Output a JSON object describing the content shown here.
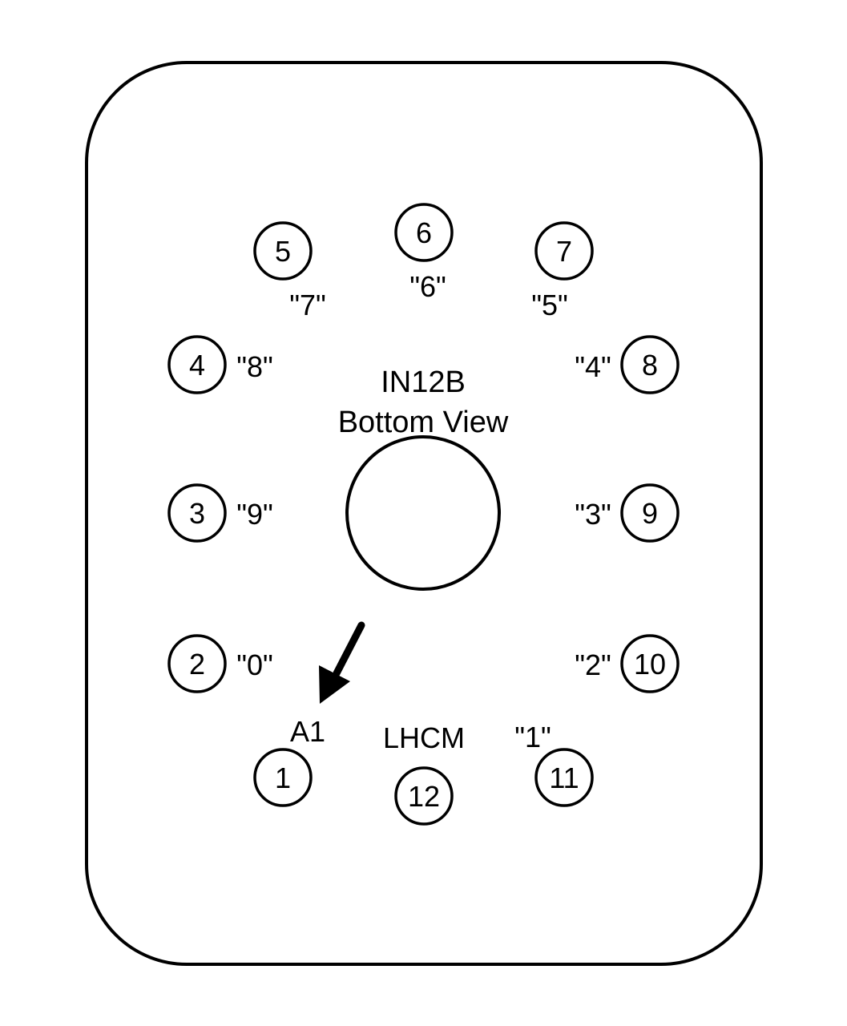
{
  "title": {
    "line1": "IN12B",
    "line2": "Bottom View"
  },
  "anode_label": "A1",
  "cathode_common_label": "LHCM",
  "pins": [
    {
      "number": "1",
      "digit": ""
    },
    {
      "number": "2",
      "digit": "\"0\""
    },
    {
      "number": "3",
      "digit": "\"9\""
    },
    {
      "number": "4",
      "digit": "\"8\""
    },
    {
      "number": "5",
      "digit": "\"7\""
    },
    {
      "number": "6",
      "digit": "\"6\""
    },
    {
      "number": "7",
      "digit": "\"5\""
    },
    {
      "number": "8",
      "digit": "\"4\""
    },
    {
      "number": "9",
      "digit": "\"3\""
    },
    {
      "number": "10",
      "digit": "\"2\""
    },
    {
      "number": "11",
      "digit": "\"1\""
    },
    {
      "number": "12",
      "digit": ""
    }
  ],
  "colors": {
    "stroke": "#000000",
    "background": "#ffffff"
  }
}
